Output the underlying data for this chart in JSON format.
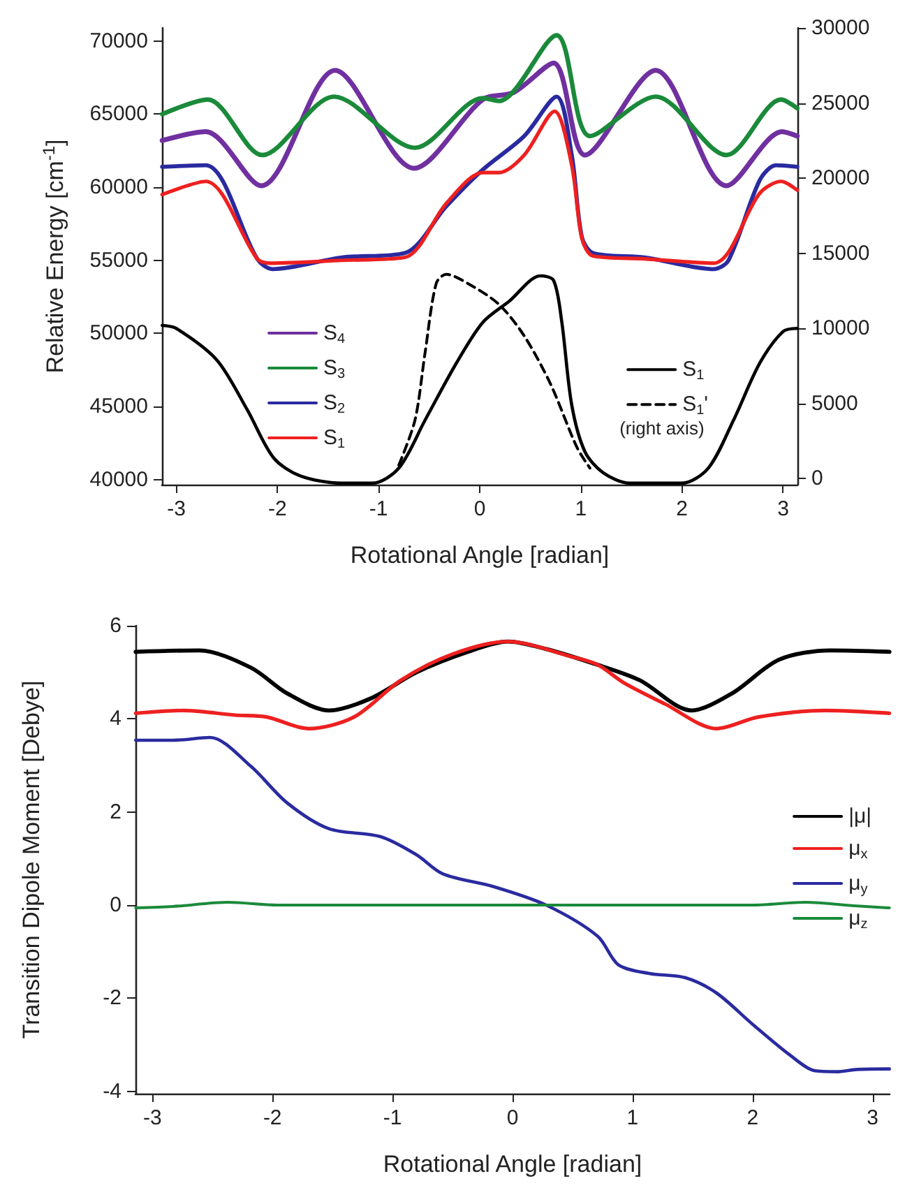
{
  "chart_data": [
    {
      "type": "line",
      "xlabel": "Rotational Angle [radian]",
      "ylabel": "Relative Energy [cm$^{-1}$]",
      "xlim": [
        -3.1416,
        3.1416
      ],
      "xticks": [
        -3,
        -2,
        -1,
        0,
        1,
        2,
        3
      ],
      "ylim": [
        39650,
        70900
      ],
      "yticks": [
        40000,
        45000,
        50000,
        55000,
        60000,
        65000,
        70000
      ],
      "y2lim": [
        -400,
        30000
      ],
      "y2ticks": [
        0,
        5000,
        10000,
        15000,
        20000,
        25000,
        30000
      ],
      "legend": "center",
      "marker": "none",
      "line_style": "solid",
      "annotations": [
        "(right axis)"
      ],
      "series": [
        {
          "name": "S$_{4}$",
          "color": "#7030a0",
          "x": [
            -3.14,
            -2.71,
            -2.16,
            -1.43,
            -0.65,
            0.03,
            0.34,
            0.73,
            1.04,
            1.74,
            2.44,
            2.99,
            3.14
          ],
          "values": [
            63200,
            63800,
            60100,
            68000,
            61300,
            66000,
            66500,
            68500,
            62200,
            68000,
            60100,
            63800,
            63500
          ]
        },
        {
          "name": "S$_{3}$",
          "color": "#1a8a3a",
          "x": [
            -3.14,
            -2.69,
            -2.15,
            -1.44,
            -0.64,
            0.03,
            0.19,
            0.76,
            1.09,
            1.74,
            2.44,
            2.98,
            3.14
          ],
          "values": [
            65000,
            66000,
            62200,
            66200,
            62700,
            66100,
            65900,
            70400,
            63500,
            66200,
            62200,
            66000,
            65400
          ]
        },
        {
          "name": "S$_{2}$",
          "color": "#2a2aa0",
          "x": [
            -3.14,
            -2.71,
            -2.2,
            -2.05,
            -1.36,
            -0.74,
            -0.33,
            0.03,
            0.44,
            0.76,
            0.91,
            1.01,
            1.12,
            1.63,
            2.31,
            2.46,
            2.77,
            2.93,
            3.14
          ],
          "values": [
            61400,
            61500,
            55100,
            54400,
            55200,
            55500,
            58700,
            61200,
            63500,
            66200,
            62200,
            56600,
            55500,
            55200,
            54400,
            55000,
            60500,
            61500,
            61400
          ]
        },
        {
          "name": "S$_{1}$",
          "color": "#ee2020",
          "x": [
            -3.14,
            -2.71,
            -2.2,
            -2.07,
            -1.36,
            -0.74,
            -0.33,
            0.03,
            0.19,
            0.44,
            0.74,
            0.91,
            1.01,
            1.12,
            1.63,
            2.31,
            2.77,
            2.98,
            3.14
          ],
          "values": [
            59500,
            60400,
            55100,
            54800,
            55000,
            55200,
            58900,
            61000,
            61000,
            62200,
            65200,
            61500,
            56500,
            55300,
            55100,
            54800,
            59600,
            60400,
            59800
          ]
        },
        {
          "name": "S$_{1}$",
          "color": "#000000",
          "axis": "y2",
          "x": [
            -3.14,
            -3.0,
            -2.6,
            -2.3,
            -2.04,
            -1.78,
            -1.37,
            -1.06,
            -0.8,
            -0.54,
            -0.23,
            0.03,
            0.29,
            0.6,
            0.73,
            0.81,
            0.91,
            1.04,
            1.22,
            1.48,
            2.0,
            2.26,
            2.51,
            2.77,
            3.0,
            3.14
          ],
          "values": [
            10200,
            10000,
            7900,
            4600,
            1400,
            200,
            -300,
            -300,
            700,
            3900,
            7700,
            10400,
            11800,
            13500,
            13200,
            10500,
            4900,
            1800,
            400,
            -300,
            -300,
            700,
            3900,
            7700,
            9800,
            10000
          ]
        },
        {
          "name": "S$_{1}$'",
          "color": "#000000",
          "axis": "y2",
          "line_style": "dashed",
          "x": [
            -0.8,
            -0.64,
            -0.54,
            -0.43,
            -0.33,
            -0.12,
            0.19,
            0.44,
            0.7,
            0.96,
            1.09
          ],
          "values": [
            900,
            3900,
            8400,
            13000,
            13600,
            13000,
            11600,
            9500,
            6300,
            2100,
            700
          ]
        }
      ]
    },
    {
      "type": "line",
      "xlabel": "Rotational Angle [radian]",
      "ylabel": "Transition Dipole Moment [Debye]",
      "xlim": [
        -3.1416,
        3.1416
      ],
      "xticks": [
        -3,
        -2,
        -1,
        0,
        1,
        2,
        3
      ],
      "ylim": [
        -4.05,
        6
      ],
      "yticks": [
        -4,
        -2,
        0,
        2,
        4,
        6
      ],
      "legend": "right",
      "marker": "none",
      "line_style": "solid",
      "series": [
        {
          "name": "|μ|",
          "color": "#000000",
          "x": [
            -3.14,
            -2.61,
            -2.18,
            -1.88,
            -1.53,
            -1.18,
            -0.8,
            -0.37,
            -0.04,
            0.28,
            0.71,
            1.06,
            1.49,
            1.83,
            2.22,
            2.65,
            3.14
          ],
          "values": [
            5.44,
            5.47,
            5.1,
            4.55,
            4.18,
            4.44,
            5.0,
            5.44,
            5.66,
            5.5,
            5.16,
            4.83,
            4.18,
            4.55,
            5.27,
            5.47,
            5.44
          ]
        },
        {
          "name": "μ$_{x}$",
          "color": "#ee2020",
          "x": [
            -3.14,
            -2.74,
            -2.31,
            -2.05,
            -1.7,
            -1.32,
            -0.93,
            -0.5,
            -0.04,
            0.5,
            0.71,
            0.93,
            1.27,
            1.7,
            2.05,
            2.61,
            3.14
          ],
          "values": [
            4.12,
            4.18,
            4.08,
            4.04,
            3.79,
            4.04,
            4.83,
            5.39,
            5.66,
            5.33,
            5.16,
            4.77,
            4.32,
            3.79,
            4.04,
            4.18,
            4.12
          ]
        },
        {
          "name": "μ$_{y}$",
          "color": "#2a2aa0",
          "x": [
            -3.14,
            -2.83,
            -2.52,
            -2.18,
            -1.88,
            -1.53,
            -1.1,
            -0.8,
            -0.58,
            -0.15,
            0.28,
            0.71,
            0.88,
            1.14,
            1.44,
            1.7,
            2.0,
            2.31,
            2.52,
            2.7,
            2.87,
            3.14
          ],
          "values": [
            3.54,
            3.54,
            3.6,
            2.98,
            2.2,
            1.64,
            1.47,
            1.08,
            0.67,
            0.39,
            0,
            -0.67,
            -1.28,
            -1.47,
            -1.56,
            -1.89,
            -2.56,
            -3.22,
            -3.56,
            -3.58,
            -3.53,
            -3.52
          ]
        },
        {
          "name": "μ$_{z}$",
          "color": "#1a8a3a",
          "x": [
            -3.14,
            -2.83,
            -2.37,
            -1.96,
            2.0,
            2.44,
            2.87,
            3.14
          ],
          "values": [
            -0.06,
            -0.03,
            0.06,
            0,
            0,
            0.06,
            -0.02,
            -0.06
          ]
        }
      ]
    }
  ]
}
